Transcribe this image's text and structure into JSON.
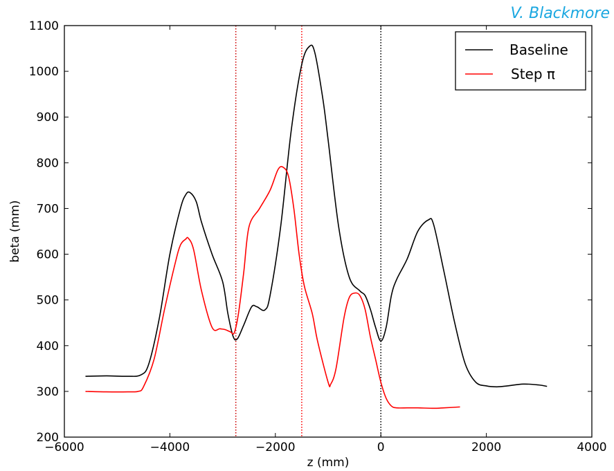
{
  "credit": "V. Blackmore",
  "chart_data": {
    "type": "line",
    "title": "",
    "xlabel": "z (mm)",
    "ylabel": "beta (mm)",
    "xlim": [
      -6000,
      4000
    ],
    "ylim": [
      200,
      1100
    ],
    "xticks": [
      -6000,
      -4000,
      -2000,
      0,
      2000,
      4000
    ],
    "xtick_labels": [
      "−6000",
      "−4000",
      "−2000",
      "0",
      "2000",
      "4000"
    ],
    "yticks": [
      200,
      300,
      400,
      500,
      600,
      700,
      800,
      900,
      1000,
      1100
    ],
    "ytick_labels": [
      "200",
      "300",
      "400",
      "500",
      "600",
      "700",
      "800",
      "900",
      "1000",
      "1100"
    ],
    "legend_position": "top-right",
    "series": [
      {
        "name": "Baseline",
        "color": "#000000",
        "x": [
          -5600,
          -5200,
          -4800,
          -4550,
          -4400,
          -4200,
          -4000,
          -3800,
          -3700,
          -3620,
          -3500,
          -3400,
          -3200,
          -3000,
          -2900,
          -2800,
          -2720,
          -2600,
          -2450,
          -2350,
          -2200,
          -2100,
          -1900,
          -1700,
          -1500,
          -1350,
          -1250,
          -1100,
          -1000,
          -800,
          -600,
          -400,
          -300,
          -200,
          -100,
          0,
          100,
          200,
          300,
          500,
          700,
          900,
          1000,
          1200,
          1400,
          1600,
          1800,
          2000,
          2200,
          2400,
          2700,
          3000,
          3150
        ],
        "y": [
          333,
          334,
          333,
          336,
          360,
          460,
          600,
          700,
          730,
          735,
          715,
          670,
          600,
          540,
          470,
          420,
          415,
          445,
          485,
          485,
          478,
          510,
          660,
          870,
          1015,
          1055,
          1040,
          940,
          850,
          660,
          550,
          520,
          510,
          480,
          440,
          410,
          440,
          510,
          545,
          590,
          650,
          675,
          665,
          560,
          450,
          360,
          320,
          312,
          310,
          312,
          316,
          314,
          311
        ]
      },
      {
        "name": "Step π",
        "color": "#ff0000",
        "x": [
          -5600,
          -5200,
          -4800,
          -4600,
          -4500,
          -4300,
          -4100,
          -3900,
          -3800,
          -3700,
          -3650,
          -3550,
          -3400,
          -3200,
          -3050,
          -2950,
          -2850,
          -2780,
          -2700,
          -2600,
          -2500,
          -2300,
          -2100,
          -1950,
          -1850,
          -1750,
          -1650,
          -1550,
          -1450,
          -1300,
          -1200,
          -1000,
          -950,
          -850,
          -700,
          -600,
          -500,
          -400,
          -300,
          -200,
          -100,
          0,
          100,
          200,
          300,
          500,
          700,
          1000,
          1200,
          1500
        ],
        "y": [
          300,
          299,
          299,
          300,
          310,
          370,
          480,
          580,
          620,
          633,
          635,
          610,
          520,
          440,
          437,
          435,
          430,
          428,
          470,
          560,
          660,
          700,
          740,
          785,
          790,
          770,
          700,
          600,
          530,
          470,
          410,
          320,
          316,
          350,
          460,
          505,
          515,
          510,
          480,
          420,
          370,
          320,
          285,
          268,
          264,
          264,
          264,
          263,
          264,
          266
        ]
      }
    ],
    "vlines": [
      {
        "x": -2750,
        "color": "#cc0000"
      },
      {
        "x": -1500,
        "color": "#ff0000"
      },
      {
        "x": 0,
        "color": "#000000"
      }
    ]
  }
}
